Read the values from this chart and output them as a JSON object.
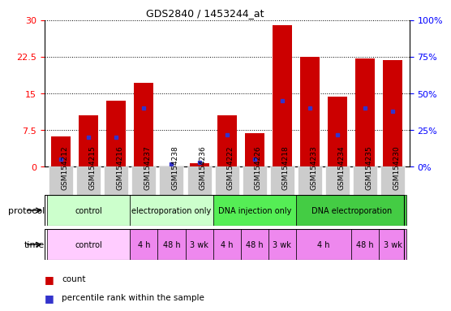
{
  "title": "GDS2840 / 1453244_at",
  "samples": [
    "GSM154212",
    "GSM154215",
    "GSM154216",
    "GSM154237",
    "GSM154238",
    "GSM154236",
    "GSM154222",
    "GSM154226",
    "GSM154218",
    "GSM154233",
    "GSM154234",
    "GSM154235",
    "GSM154230"
  ],
  "counts": [
    6.2,
    10.5,
    13.5,
    17.2,
    0.05,
    0.7,
    10.5,
    6.8,
    29.0,
    22.5,
    14.3,
    22.2,
    21.8
  ],
  "percentile": [
    5,
    20,
    20,
    40,
    2,
    3,
    22,
    5,
    45,
    40,
    22,
    40,
    38
  ],
  "ylim_left": [
    0,
    30
  ],
  "ylim_right": [
    0,
    100
  ],
  "yticks_left": [
    0,
    7.5,
    15,
    22.5,
    30
  ],
  "yticks_right": [
    0,
    25,
    50,
    75,
    100
  ],
  "bar_color": "#cc0000",
  "blue_color": "#3333cc",
  "protocol_groups": [
    {
      "label": "control",
      "start": 0,
      "end": 3,
      "color": "#ccffcc"
    },
    {
      "label": "electroporation only",
      "start": 3,
      "end": 6,
      "color": "#ccffcc"
    },
    {
      "label": "DNA injection only",
      "start": 6,
      "end": 9,
      "color": "#55ee55"
    },
    {
      "label": "DNA electroporation",
      "start": 9,
      "end": 13,
      "color": "#44cc44"
    }
  ],
  "time_groups": [
    {
      "label": "control",
      "start": 0,
      "end": 3,
      "color": "#ffccff"
    },
    {
      "label": "4 h",
      "start": 3,
      "end": 4,
      "color": "#ee88ee"
    },
    {
      "label": "48 h",
      "start": 4,
      "end": 5,
      "color": "#ee88ee"
    },
    {
      "label": "3 wk",
      "start": 5,
      "end": 6,
      "color": "#ee88ee"
    },
    {
      "label": "4 h",
      "start": 6,
      "end": 7,
      "color": "#ee88ee"
    },
    {
      "label": "48 h",
      "start": 7,
      "end": 8,
      "color": "#ee88ee"
    },
    {
      "label": "3 wk",
      "start": 8,
      "end": 9,
      "color": "#ee88ee"
    },
    {
      "label": "4 h",
      "start": 9,
      "end": 11,
      "color": "#ee88ee"
    },
    {
      "label": "48 h",
      "start": 11,
      "end": 12,
      "color": "#ee88ee"
    },
    {
      "label": "3 wk",
      "start": 12,
      "end": 13,
      "color": "#ee88ee"
    }
  ],
  "xtick_bg": "#cccccc",
  "legend_items": [
    {
      "color": "#cc0000",
      "label": "count"
    },
    {
      "color": "#3333cc",
      "label": "percentile rank within the sample"
    }
  ]
}
